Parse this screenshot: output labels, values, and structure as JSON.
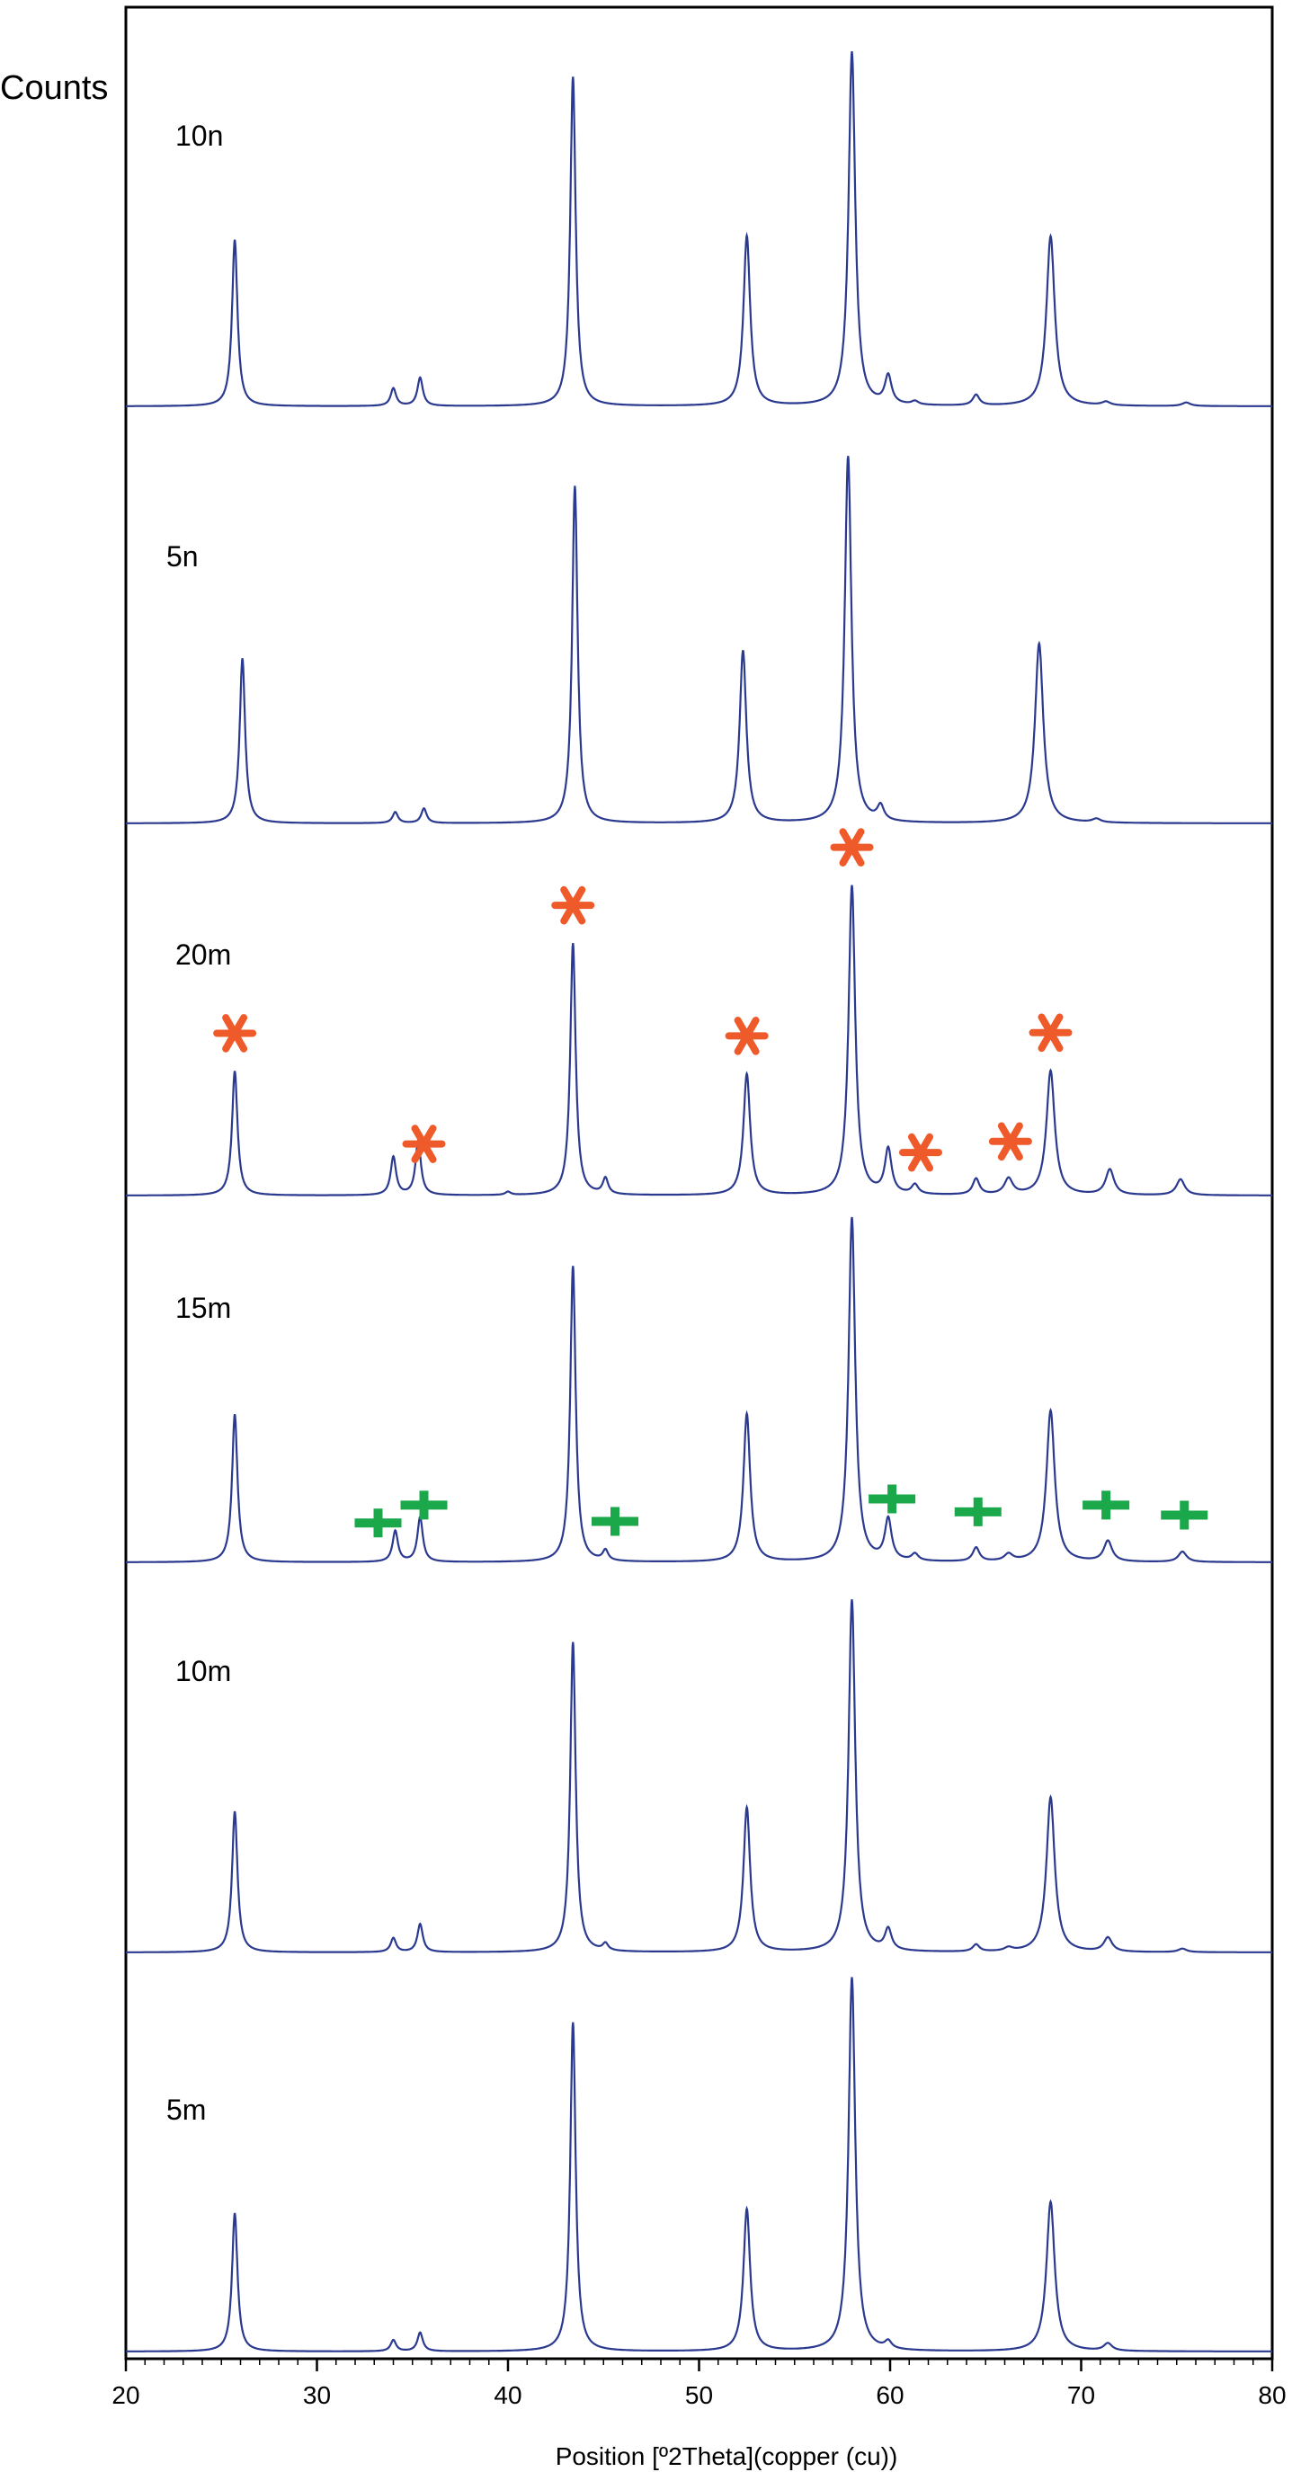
{
  "chart_data": {
    "type": "line",
    "ylabel": "Counts",
    "xlabel": "Position [º2Theta](copper (cu))",
    "xlim": [
      20,
      80
    ],
    "x_ticks": [
      "20",
      "30",
      "40",
      "50",
      "60",
      "70",
      "80"
    ],
    "grid": false,
    "line_color": "#2b3a8f",
    "colors": {
      "star": "#ef5a2a",
      "plus": "#1aa84a"
    },
    "series": [
      {
        "name": "10n",
        "peaks": [
          [
            25.7,
            0.47
          ],
          [
            34.0,
            0.05
          ],
          [
            35.4,
            0.08
          ],
          [
            43.4,
            0.93
          ],
          [
            52.5,
            0.48
          ],
          [
            58.0,
            1.0
          ],
          [
            59.9,
            0.08
          ],
          [
            61.3,
            0.01
          ],
          [
            64.5,
            0.03
          ],
          [
            68.4,
            0.48
          ],
          [
            71.3,
            0.01
          ],
          [
            75.5,
            0.01
          ]
        ]
      },
      {
        "name": "5n",
        "peaks": [
          [
            26.1,
            0.45
          ],
          [
            34.1,
            0.03
          ],
          [
            35.6,
            0.04
          ],
          [
            43.5,
            0.92
          ],
          [
            52.3,
            0.47
          ],
          [
            57.8,
            1.0
          ],
          [
            59.5,
            0.04
          ],
          [
            67.8,
            0.49
          ],
          [
            70.8,
            0.01
          ]
        ]
      },
      {
        "name": "20m",
        "peaks": [
          [
            25.7,
            0.39
          ],
          [
            34.0,
            0.12
          ],
          [
            35.3,
            0.17
          ],
          [
            40.0,
            0.01
          ],
          [
            43.4,
            0.79
          ],
          [
            45.1,
            0.05
          ],
          [
            52.5,
            0.38
          ],
          [
            58.0,
            0.97
          ],
          [
            59.9,
            0.14
          ],
          [
            61.3,
            0.03
          ],
          [
            64.5,
            0.05
          ],
          [
            66.2,
            0.05
          ],
          [
            68.4,
            0.39
          ],
          [
            71.5,
            0.08
          ],
          [
            75.2,
            0.05
          ]
        ]
      },
      {
        "name": "15m",
        "peaks": [
          [
            25.7,
            0.43
          ],
          [
            34.1,
            0.09
          ],
          [
            35.4,
            0.13
          ],
          [
            43.4,
            0.86
          ],
          [
            45.1,
            0.03
          ],
          [
            52.5,
            0.43
          ],
          [
            58.0,
            1.0
          ],
          [
            59.9,
            0.12
          ],
          [
            61.3,
            0.02
          ],
          [
            64.5,
            0.04
          ],
          [
            66.2,
            0.02
          ],
          [
            68.4,
            0.44
          ],
          [
            71.4,
            0.06
          ],
          [
            75.3,
            0.03
          ]
        ]
      },
      {
        "name": "10m",
        "peaks": [
          [
            25.7,
            0.4
          ],
          [
            34.0,
            0.04
          ],
          [
            35.4,
            0.08
          ],
          [
            43.4,
            0.88
          ],
          [
            45.1,
            0.02
          ],
          [
            52.5,
            0.41
          ],
          [
            58.0,
            1.0
          ],
          [
            59.9,
            0.06
          ],
          [
            64.5,
            0.02
          ],
          [
            66.2,
            0.01
          ],
          [
            68.4,
            0.44
          ],
          [
            71.4,
            0.04
          ],
          [
            75.3,
            0.01
          ]
        ]
      },
      {
        "name": "5m",
        "peaks": [
          [
            25.7,
            0.37
          ],
          [
            34.0,
            0.03
          ],
          [
            35.4,
            0.05
          ],
          [
            43.4,
            0.88
          ],
          [
            52.5,
            0.38
          ],
          [
            58.0,
            1.0
          ],
          [
            59.9,
            0.02
          ],
          [
            68.4,
            0.4
          ],
          [
            71.4,
            0.02
          ]
        ]
      }
    ],
    "annotations": {
      "star_markers": [
        {
          "x": 25.7,
          "series": "20m"
        },
        {
          "x": 35.6,
          "series": "20m"
        },
        {
          "x": 43.4,
          "series": "20m"
        },
        {
          "x": 52.5,
          "series": "20m"
        },
        {
          "x": 58.0,
          "series": "20m"
        },
        {
          "x": 61.6,
          "series": "20m"
        },
        {
          "x": 66.3,
          "series": "20m"
        },
        {
          "x": 68.4,
          "series": "20m"
        }
      ],
      "plus_markers": [
        {
          "x": 33.2,
          "series": "15m"
        },
        {
          "x": 35.6,
          "series": "15m"
        },
        {
          "x": 45.6,
          "series": "15m"
        },
        {
          "x": 60.1,
          "series": "15m"
        },
        {
          "x": 64.6,
          "series": "15m"
        },
        {
          "x": 71.3,
          "series": "15m"
        },
        {
          "x": 75.4,
          "series": "15m"
        }
      ]
    }
  }
}
